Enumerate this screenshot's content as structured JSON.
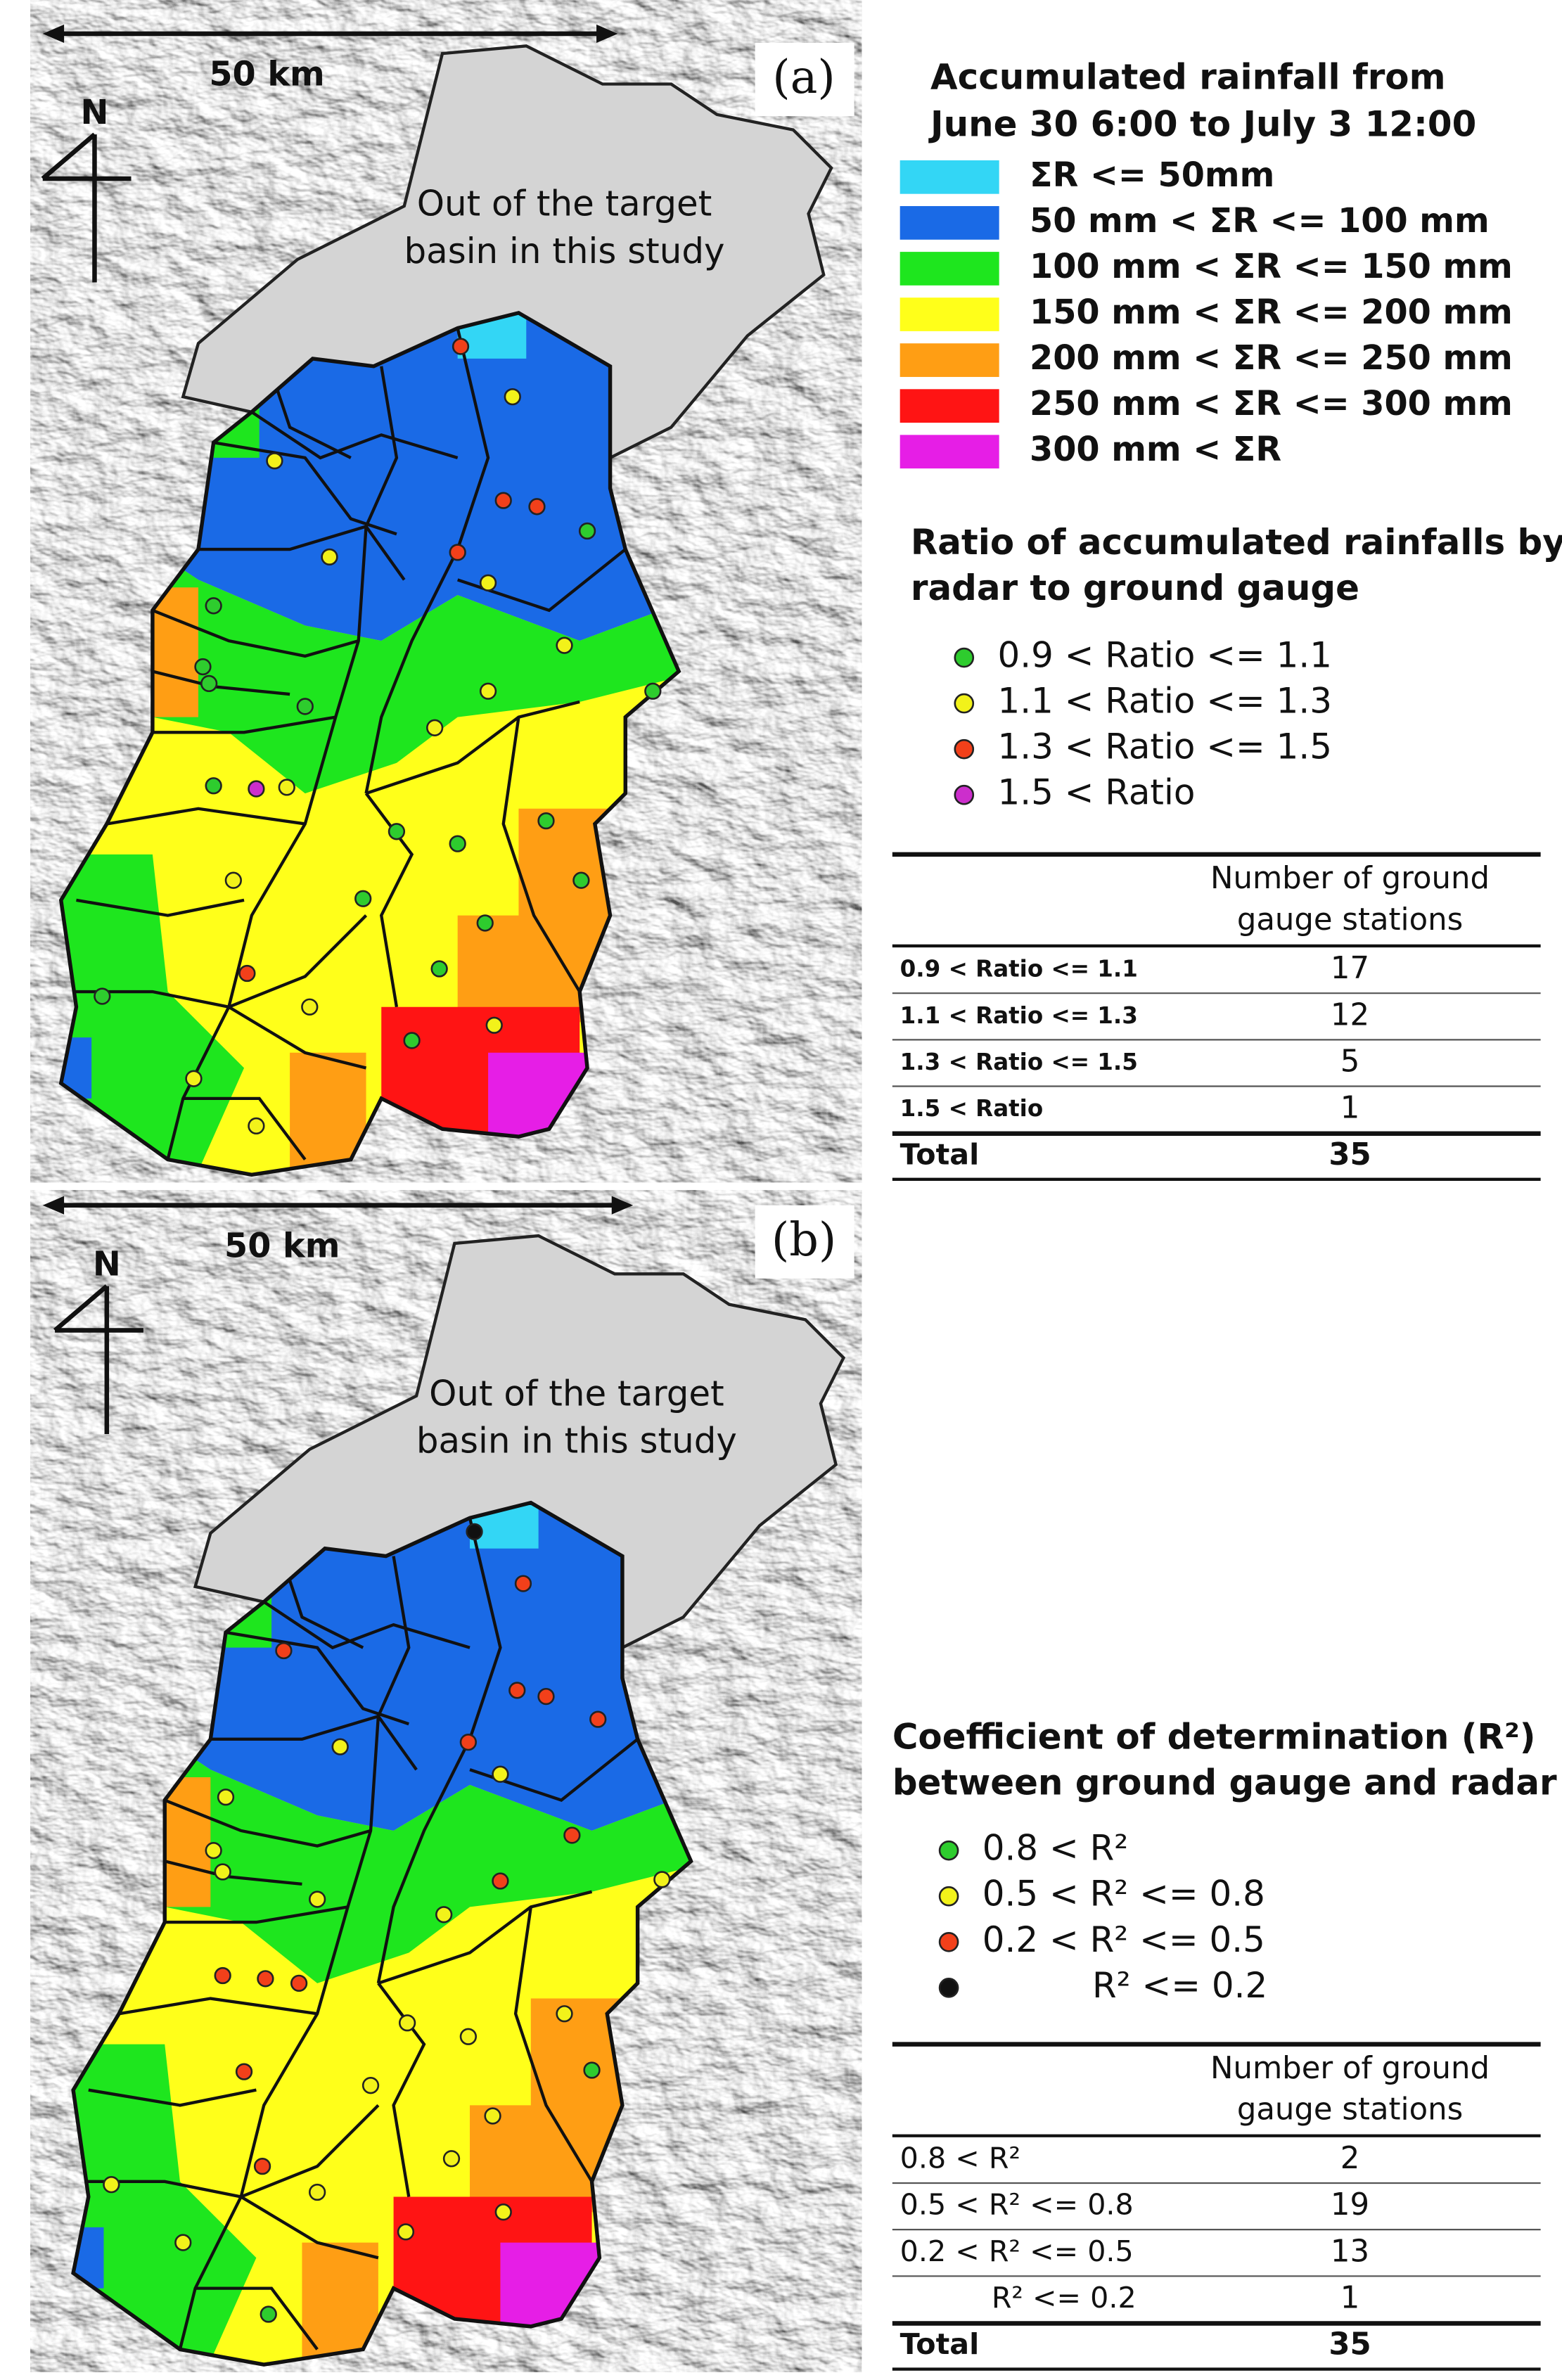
{
  "rainfall_legend": {
    "title": [
      "Accumulated rainfall from",
      "June 30 6:00 to July 3 12:00"
    ],
    "items": [
      {
        "label": "ΣR <= 50mm",
        "color": "#33d6f5"
      },
      {
        "label": "50 mm < ΣR <= 100 mm",
        "color": "#1a6ae6"
      },
      {
        "label": "100 mm < ΣR <= 150 mm",
        "color": "#1ee61e"
      },
      {
        "label": "150 mm < ΣR <= 200 mm",
        "color": "#ffff1a"
      },
      {
        "label": "200 mm < ΣR <= 250 mm",
        "color": "#ff9e14"
      },
      {
        "label": "250 mm < ΣR <= 300 mm",
        "color": "#ff1414"
      },
      {
        "label": "300 mm < ΣR",
        "color": "#e61ee6"
      }
    ]
  },
  "panel_a": {
    "label": "(a)",
    "scale": "50 km",
    "north": "N",
    "outside": [
      "Out of the target",
      "basin in this study"
    ],
    "station_legend": {
      "title": [
        "Ratio of accumulated rainfalls by",
        "radar to ground gauge"
      ],
      "items": [
        {
          "label": "0.9 < Ratio <= 1.1",
          "color": "#2ecc2e"
        },
        {
          "label": "1.1 < Ratio <= 1.3",
          "color": "#f2f21a"
        },
        {
          "label": "1.3 < Ratio <= 1.5",
          "color": "#f2401a"
        },
        {
          "label": "1.5 < Ratio",
          "color": "#cc2ecc"
        }
      ]
    },
    "table": {
      "header": [
        "Number of ground",
        "gauge stations"
      ],
      "rows": [
        [
          "0.9 < Ratio <= 1.1",
          17
        ],
        [
          "1.1 < Ratio <= 1.3",
          12
        ],
        [
          "1.3 < Ratio <= 1.5",
          5
        ],
        [
          "1.5 < Ratio",
          1
        ]
      ],
      "total": [
        "Total",
        35
      ]
    }
  },
  "panel_b": {
    "label": "(b)",
    "scale": "50 km",
    "north": "N",
    "outside": [
      "Out of the target",
      "basin in this study"
    ],
    "station_legend": {
      "title": [
        "Coefficient of determination (R²)",
        "between ground gauge and radar"
      ],
      "items": [
        {
          "label": "0.8 < R²",
          "color": "#2ecc2e"
        },
        {
          "label": "0.5 < R² <= 0.8",
          "color": "#f2f21a"
        },
        {
          "label": "0.2 < R² <= 0.5",
          "color": "#f2401a"
        },
        {
          "label": "R² <= 0.2",
          "color": "#111111"
        }
      ]
    },
    "table": {
      "header": [
        "Number of ground",
        "gauge stations"
      ],
      "rows": [
        [
          "0.8 < R²",
          2
        ],
        [
          "0.5 < R² <= 0.8",
          19
        ],
        [
          "0.2 < R² <= 0.5",
          13
        ],
        [
          "R² <= 0.2",
          1
        ]
      ],
      "total": [
        "Total",
        35
      ]
    }
  }
}
